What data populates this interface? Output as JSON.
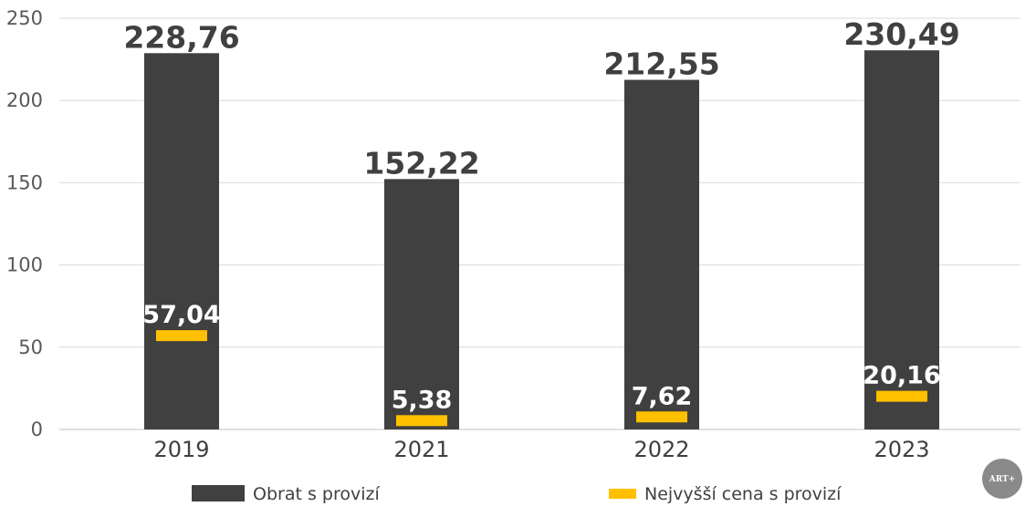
{
  "chart_data": {
    "type": "bar",
    "categories": [
      "2019",
      "2021",
      "2022",
      "2023"
    ],
    "series": [
      {
        "name": "Obrat s provizí",
        "values": [
          228.76,
          152.22,
          212.55,
          230.49
        ],
        "labels": [
          "228,76",
          "152,22",
          "212,55",
          "230,49"
        ],
        "color": "#404040"
      },
      {
        "name": "Nejvyšší cena s provizí",
        "values": [
          57.04,
          5.38,
          7.62,
          20.16
        ],
        "labels": [
          "57,04",
          "5,38",
          "7,62",
          "20,16"
        ],
        "color": "#FFC000"
      }
    ],
    "yticks": [
      "0",
      "50",
      "100",
      "150",
      "200",
      "250"
    ],
    "ylim": [
      0,
      250
    ],
    "grid": true,
    "legend": "bottom"
  },
  "logo": {
    "text": "ART+"
  }
}
